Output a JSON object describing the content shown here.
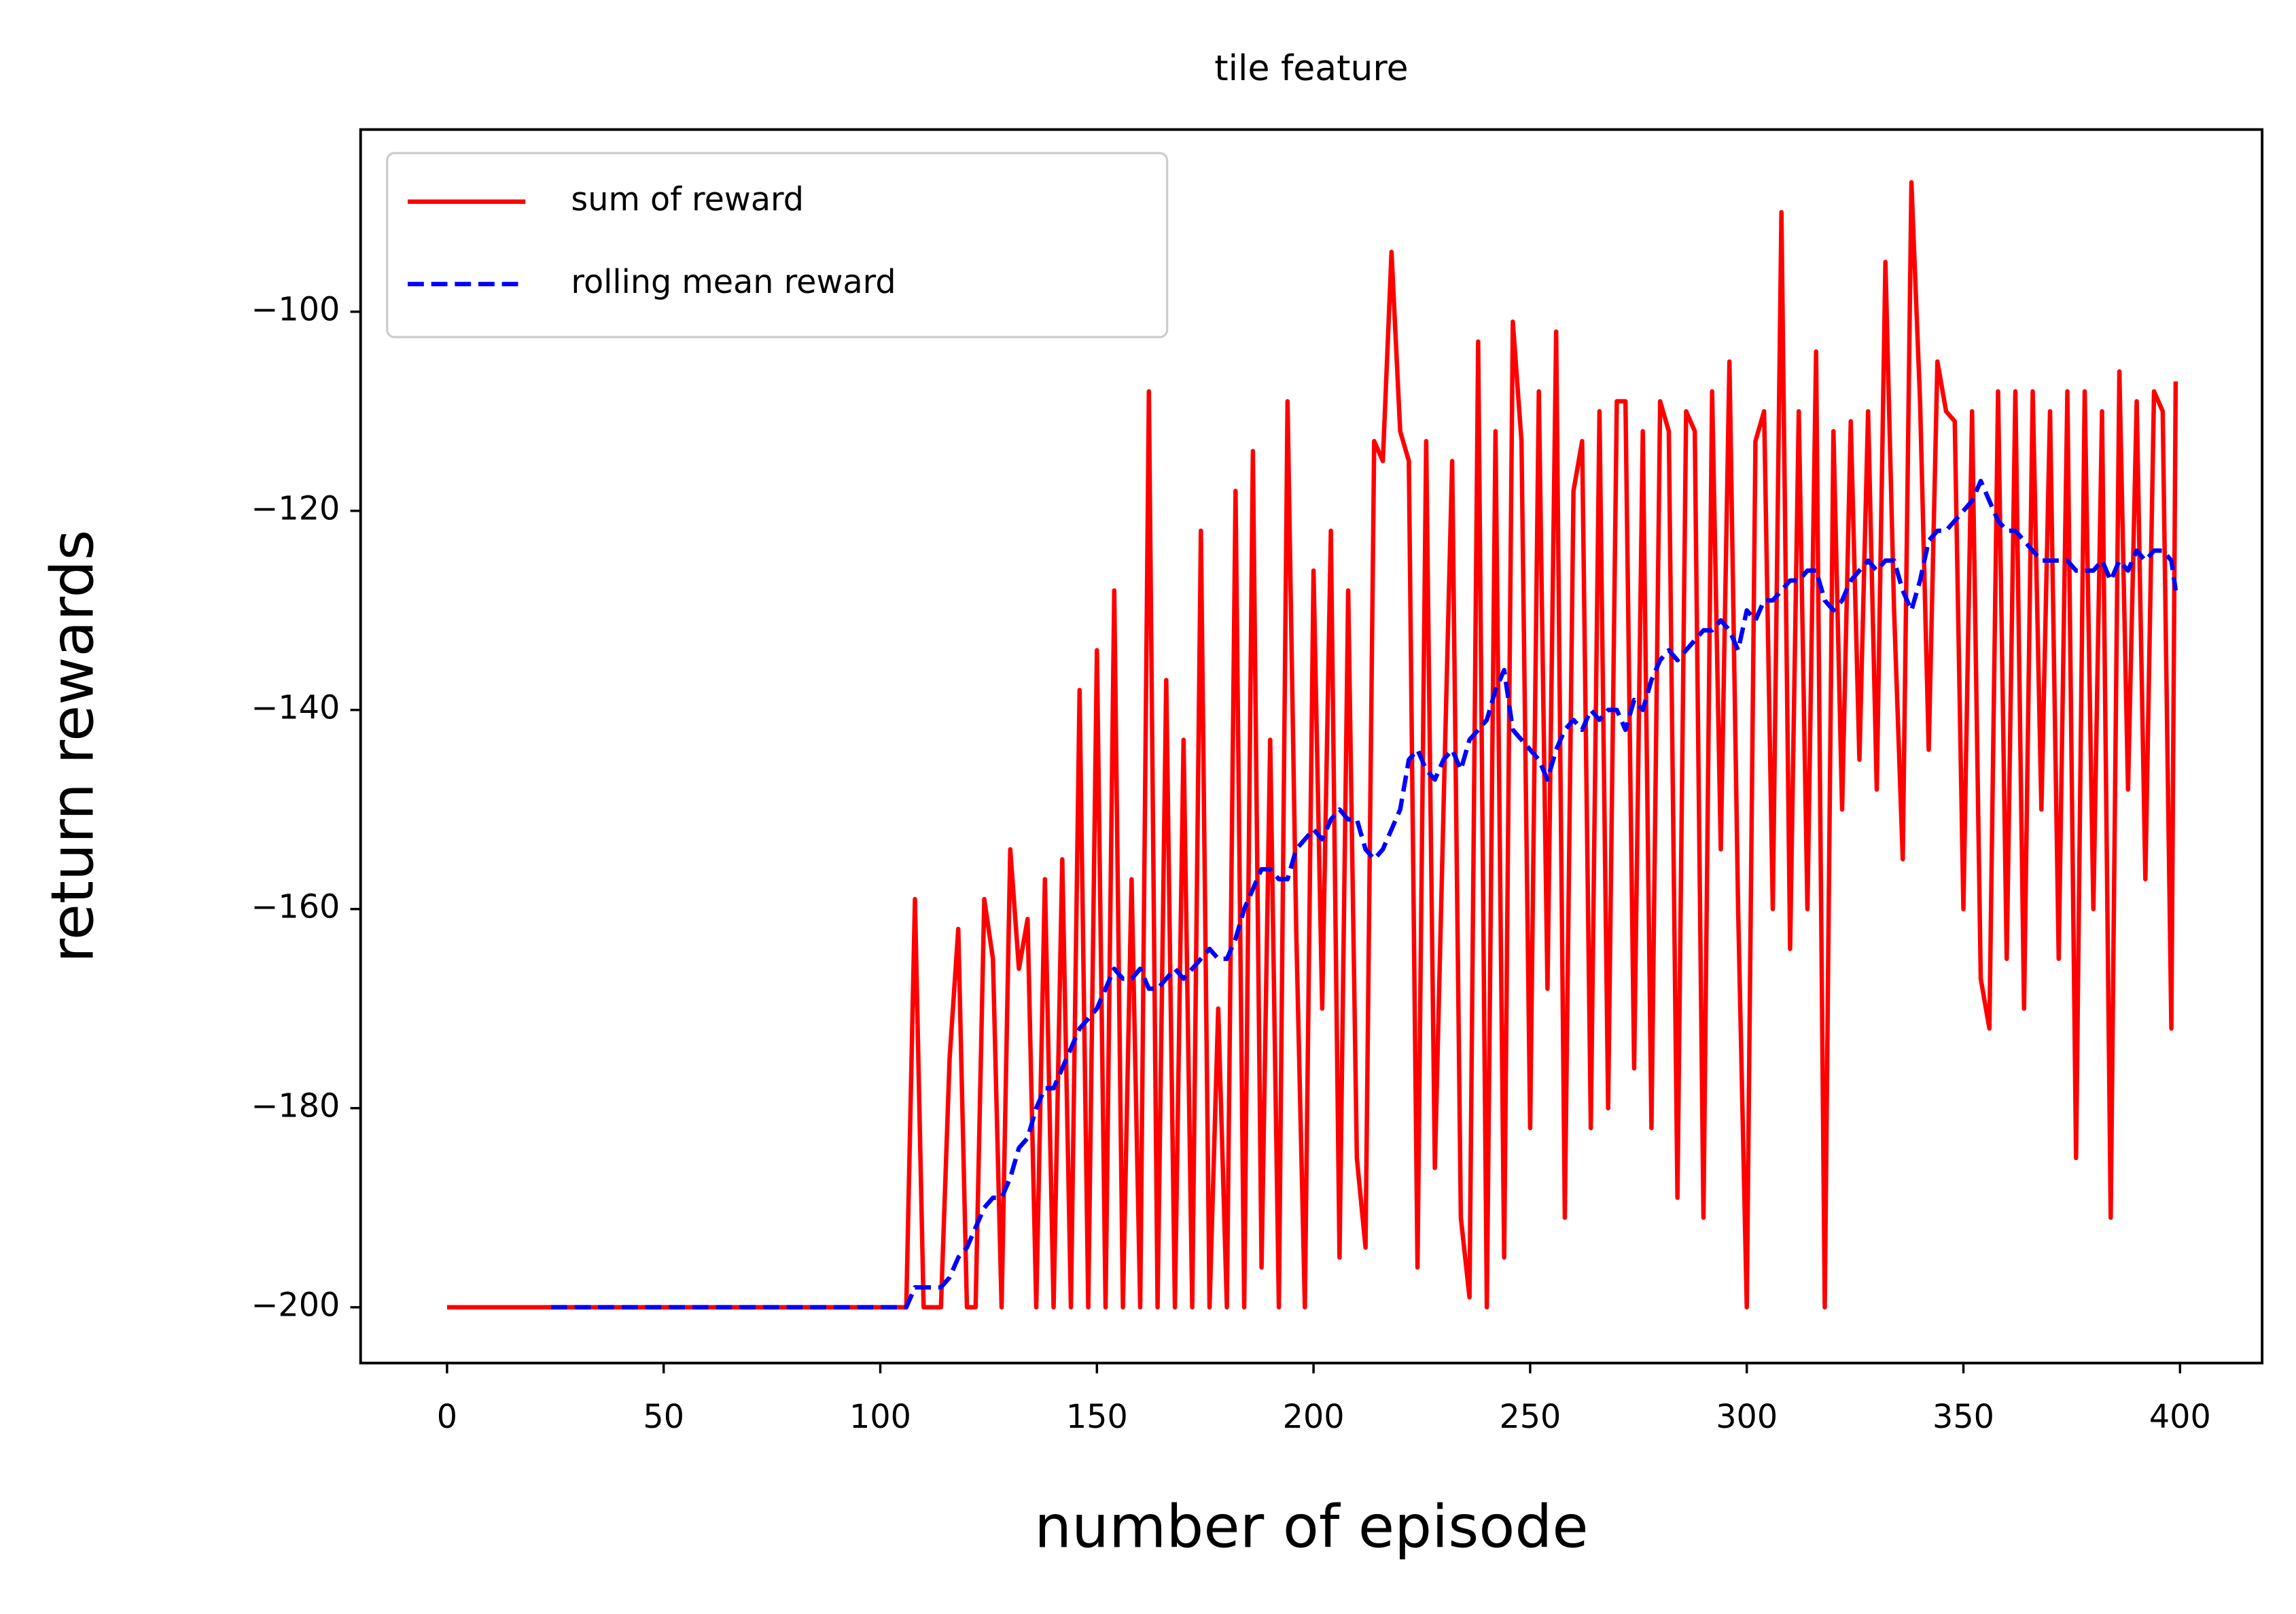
{
  "chart_data": {
    "type": "line",
    "title": "tile feature",
    "x_label": "number of episode",
    "y_label": "return rewards",
    "x": [
      0,
      2,
      4,
      6,
      8,
      10,
      12,
      14,
      16,
      18,
      20,
      22,
      24,
      26,
      28,
      30,
      32,
      34,
      36,
      38,
      40,
      42,
      44,
      46,
      48,
      50,
      52,
      54,
      56,
      58,
      60,
      62,
      64,
      66,
      68,
      70,
      72,
      74,
      76,
      78,
      80,
      82,
      84,
      86,
      88,
      90,
      92,
      94,
      96,
      98,
      100,
      102,
      104,
      106,
      108,
      110,
      112,
      114,
      116,
      118,
      120,
      122,
      124,
      126,
      128,
      130,
      132,
      134,
      136,
      138,
      140,
      142,
      144,
      146,
      148,
      150,
      152,
      154,
      156,
      158,
      160,
      162,
      164,
      166,
      168,
      170,
      172,
      174,
      176,
      178,
      180,
      182,
      184,
      186,
      188,
      190,
      192,
      194,
      196,
      198,
      200,
      202,
      204,
      206,
      208,
      210,
      212,
      214,
      216,
      218,
      220,
      222,
      224,
      226,
      228,
      230,
      232,
      234,
      236,
      238,
      240,
      242,
      244,
      246,
      248,
      250,
      252,
      254,
      256,
      258,
      260,
      262,
      264,
      266,
      268,
      270,
      272,
      274,
      276,
      278,
      280,
      282,
      284,
      286,
      288,
      290,
      292,
      294,
      296,
      298,
      300,
      302,
      304,
      306,
      308,
      310,
      312,
      314,
      316,
      318,
      320,
      322,
      324,
      326,
      328,
      330,
      332,
      334,
      336,
      338,
      340,
      342,
      344,
      346,
      348,
      350,
      352,
      354,
      356,
      358,
      360,
      362,
      364,
      366,
      368,
      370,
      372,
      374,
      376,
      378,
      380,
      382,
      384,
      386,
      388,
      390,
      392,
      394,
      396,
      398,
      399
    ],
    "series": [
      {
        "name": "sum of reward",
        "color": "#ff0000",
        "dash": false,
        "values": [
          -200,
          -200,
          -200,
          -200,
          -200,
          -200,
          -200,
          -200,
          -200,
          -200,
          -200,
          -200,
          -200,
          -200,
          -200,
          -200,
          -200,
          -200,
          -200,
          -200,
          -200,
          -200,
          -200,
          -200,
          -200,
          -200,
          -200,
          -200,
          -200,
          -200,
          -200,
          -200,
          -200,
          -200,
          -200,
          -200,
          -200,
          -200,
          -200,
          -200,
          -200,
          -200,
          -200,
          -200,
          -200,
          -200,
          -200,
          -200,
          -200,
          -200,
          -200,
          -200,
          -200,
          -200,
          -159,
          -200,
          -200,
          -200,
          -175,
          -162,
          -200,
          -200,
          -159,
          -165,
          -200,
          -154,
          -166,
          -161,
          -200,
          -157,
          -200,
          -155,
          -200,
          -138,
          -200,
          -134,
          -200,
          -128,
          -200,
          -157,
          -200,
          -108,
          -200,
          -137,
          -200,
          -143,
          -200,
          -122,
          -200,
          -170,
          -200,
          -118,
          -200,
          -114,
          -196,
          -143,
          -200,
          -109,
          -162,
          -200,
          -126,
          -170,
          -122,
          -195,
          -128,
          -185,
          -194,
          -113,
          -115,
          -94,
          -112,
          -115,
          -196,
          -113,
          -186,
          -150,
          -115,
          -191,
          -199,
          -103,
          -200,
          -112,
          -195,
          -101,
          -113,
          -182,
          -108,
          -168,
          -102,
          -191,
          -118,
          -113,
          -182,
          -110,
          -180,
          -109,
          -109,
          -176,
          -112,
          -182,
          -109,
          -112,
          -189,
          -110,
          -112,
          -191,
          -108,
          -154,
          -105,
          -160,
          -200,
          -113,
          -110,
          -160,
          -90,
          -164,
          -110,
          -160,
          -104,
          -200,
          -112,
          -150,
          -111,
          -145,
          -110,
          -148,
          -95,
          -130,
          -155,
          -87,
          -109,
          -144,
          -105,
          -110,
          -111,
          -160,
          -110,
          -167,
          -172,
          -108,
          -165,
          -108,
          -170,
          -108,
          -150,
          -110,
          -165,
          -108,
          -185,
          -108,
          -160,
          -110,
          -191,
          -106,
          -148,
          -109,
          -157,
          -108,
          -110,
          -172,
          -107
        ]
      },
      {
        "name": "rolling mean reward",
        "color": "#0000ff",
        "dash": true,
        "values": [
          null,
          null,
          null,
          null,
          null,
          null,
          null,
          null,
          null,
          null,
          null,
          null,
          -200,
          -200,
          -200,
          -200,
          -200,
          -200,
          -200,
          -200,
          -200,
          -200,
          -200,
          -200,
          -200,
          -200,
          -200,
          -200,
          -200,
          -200,
          -200,
          -200,
          -200,
          -200,
          -200,
          -200,
          -200,
          -200,
          -200,
          -200,
          -200,
          -200,
          -200,
          -200,
          -200,
          -200,
          -200,
          -200,
          -200,
          -200,
          -200,
          -200,
          -200,
          -200,
          -198,
          -198,
          -198,
          -198,
          -197,
          -195,
          -194,
          -192,
          -190,
          -189,
          -189,
          -187,
          -184,
          -183,
          -180,
          -178,
          -178,
          -176,
          -174,
          -172,
          -171,
          -170,
          -168,
          -166,
          -167,
          -167,
          -166,
          -168,
          -168,
          -167,
          -166,
          -167,
          -166,
          -165,
          -164,
          -165,
          -165,
          -163,
          -160,
          -158,
          -156,
          -156,
          -157,
          -157,
          -154,
          -153,
          -152,
          -153,
          -151,
          -150,
          -151,
          -151,
          -154,
          -155,
          -154,
          -152,
          -150,
          -145,
          -144,
          -146,
          -147,
          -145,
          -144,
          -146,
          -143,
          -142,
          -141,
          -138,
          -136,
          -142,
          -143,
          -144,
          -145,
          -147,
          -144,
          -142,
          -141,
          -142,
          -140,
          -141,
          -140,
          -140,
          -142,
          -139,
          -140,
          -137,
          -135,
          -134,
          -135,
          -134,
          -133,
          -132,
          -132,
          -131,
          -132,
          -134,
          -130,
          -131,
          -129,
          -129,
          -128,
          -127,
          -127,
          -126,
          -126,
          -129,
          -130,
          -129,
          -127,
          -126,
          -125,
          -126,
          -125,
          -125,
          -128,
          -130,
          -127,
          -123,
          -122,
          -122,
          -121,
          -120,
          -119,
          -117,
          -119,
          -121,
          -122,
          -122,
          -123,
          -124,
          -125,
          -125,
          -125,
          -125,
          -126,
          -126,
          -126,
          -125,
          -127,
          -125,
          -126,
          -124,
          -125,
          -124,
          -124,
          -125,
          -128
        ]
      }
    ],
    "xlim": [
      -19.95,
      418.95
    ],
    "ylim": [
      -205.6,
      -81.7
    ],
    "xticks": [
      0,
      50,
      100,
      150,
      200,
      250,
      300,
      350,
      400
    ],
    "yticks": [
      {
        "value": -200,
        "label": "−200"
      },
      {
        "value": -180,
        "label": "−180"
      },
      {
        "value": -160,
        "label": "−160"
      },
      {
        "value": -140,
        "label": "−140"
      },
      {
        "value": -120,
        "label": "−120"
      },
      {
        "value": -100,
        "label": "−100"
      }
    ],
    "legend": "upper left",
    "grid": false
  }
}
